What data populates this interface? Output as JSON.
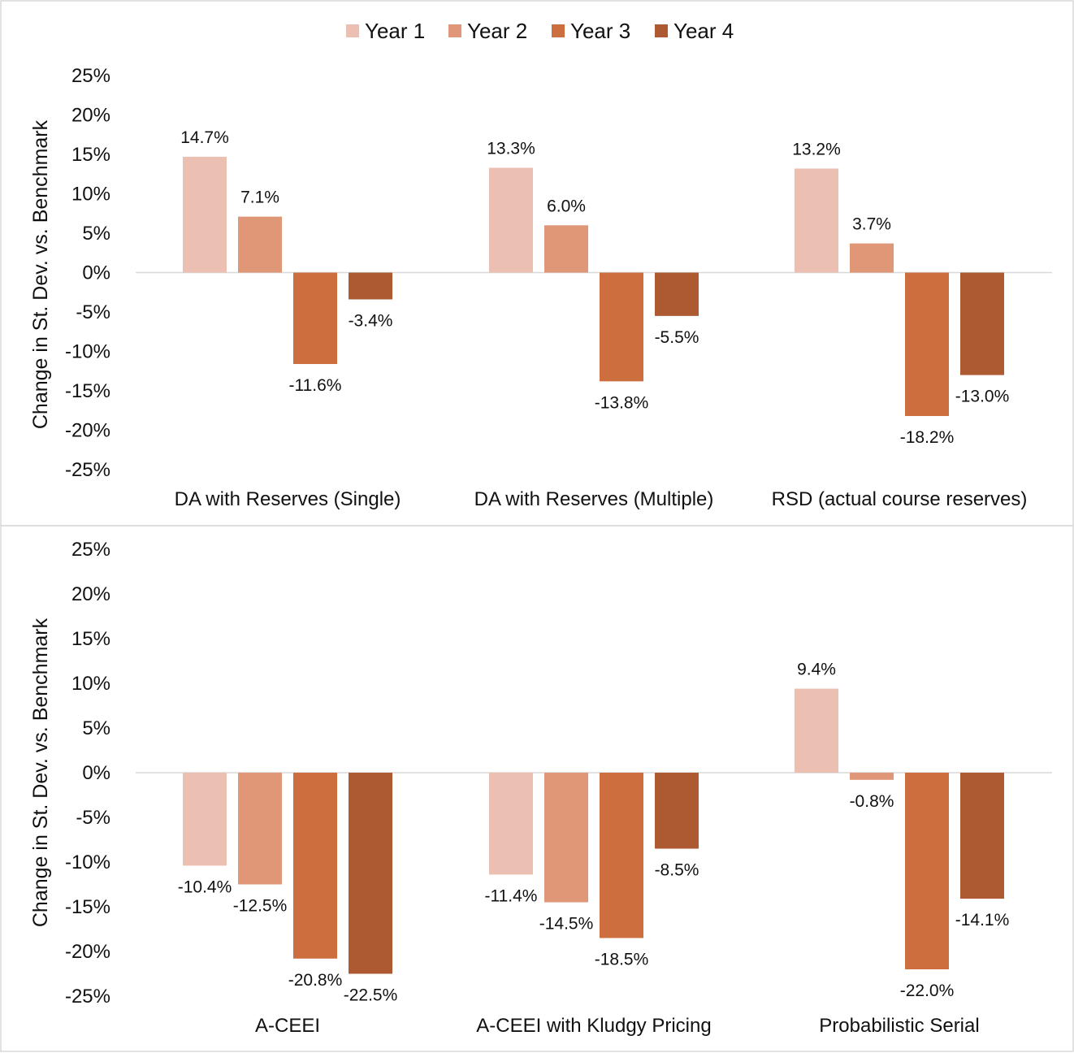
{
  "chart_data": [
    {
      "type": "bar",
      "ylabel": "Change in St. Dev. vs. Benchmark",
      "ylim": [
        -25,
        25
      ],
      "yticks": [
        "25%",
        "20%",
        "15%",
        "10%",
        "5%",
        "0%",
        "-5%",
        "-10%",
        "-15%",
        "-20%",
        "-25%"
      ],
      "categories": [
        "DA with Reserves (Single)",
        "DA with Reserves (Multiple)",
        "RSD (actual course reserves)"
      ],
      "legend": {
        "position": "top-center"
      },
      "series": [
        {
          "name": "Year 1",
          "color": "#ebc0b3",
          "values": [
            14.7,
            13.3,
            13.2
          ],
          "labels": [
            "14.7%",
            "13.3%",
            "13.2%"
          ]
        },
        {
          "name": "Year 2",
          "color": "#df9778",
          "values": [
            7.1,
            6.0,
            3.7
          ],
          "labels": [
            "7.1%",
            "6.0%",
            "3.7%"
          ]
        },
        {
          "name": "Year 3",
          "color": "#cd6e3e",
          "values": [
            -11.6,
            -13.8,
            -18.2
          ],
          "labels": [
            "-11.6%",
            "-13.8%",
            "-18.2%"
          ]
        },
        {
          "name": "Year 4",
          "color": "#ad5a32",
          "values": [
            -3.4,
            -5.5,
            -13.0
          ],
          "labels": [
            "-3.4%",
            "-5.5%",
            "-13.0%"
          ]
        }
      ]
    },
    {
      "type": "bar",
      "ylabel": "Change in St. Dev. vs. Benchmark",
      "ylim": [
        -25,
        25
      ],
      "yticks": [
        "25%",
        "20%",
        "15%",
        "10%",
        "5%",
        "0%",
        "-5%",
        "-10%",
        "-15%",
        "-20%",
        "-25%"
      ],
      "categories": [
        "A-CEEI",
        "A-CEEI with Kludgy Pricing",
        "Probabilistic Serial"
      ],
      "series": [
        {
          "name": "Year 1",
          "color": "#ebc0b3",
          "values": [
            -10.4,
            -11.4,
            9.4
          ],
          "labels": [
            "-10.4%",
            "-11.4%",
            "9.4%"
          ]
        },
        {
          "name": "Year 2",
          "color": "#df9778",
          "values": [
            -12.5,
            -14.5,
            -0.8
          ],
          "labels": [
            "-12.5%",
            "-14.5%",
            "-0.8%"
          ]
        },
        {
          "name": "Year 3",
          "color": "#cd6e3e",
          "values": [
            -20.8,
            -18.5,
            -22.0
          ],
          "labels": [
            "-20.8%",
            "-18.5%",
            "-22.0%"
          ]
        },
        {
          "name": "Year 4",
          "color": "#ad5a32",
          "values": [
            -22.5,
            -8.5,
            -14.1
          ],
          "labels": [
            "-22.5%",
            "-8.5%",
            "-14.1%"
          ]
        }
      ]
    }
  ]
}
